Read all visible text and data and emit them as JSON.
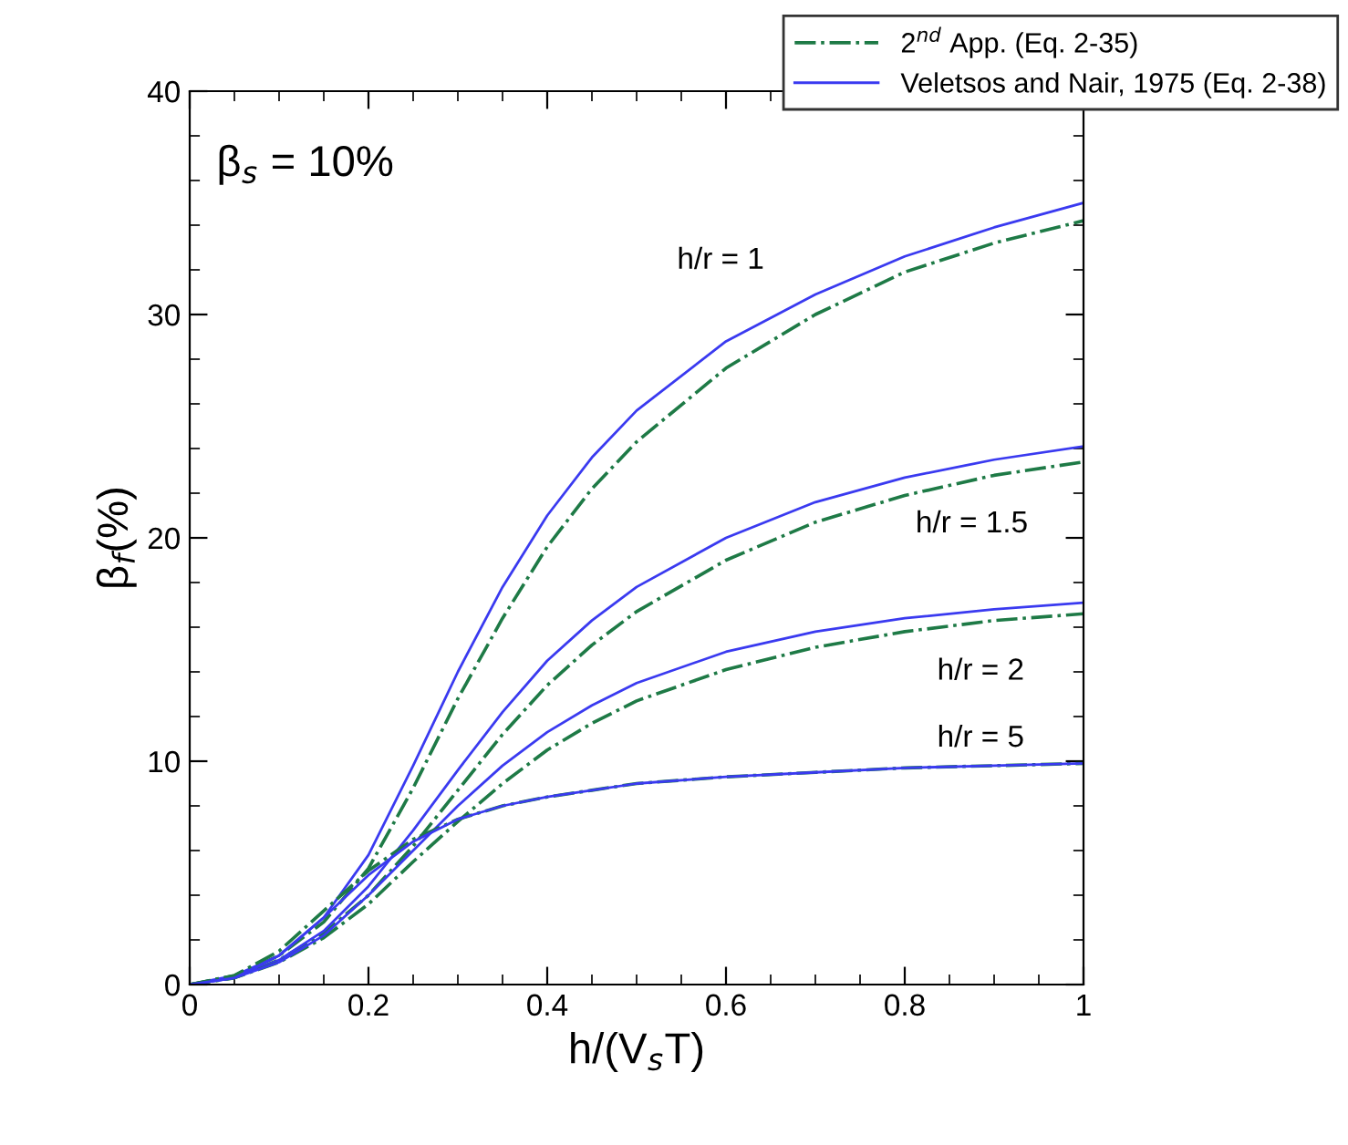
{
  "chart_data": {
    "type": "line",
    "xlabel": "h/(V$_{s}$T)",
    "ylabel": "β$_{f}$(%)",
    "x": [
      0,
      0.05,
      0.1,
      0.15,
      0.2,
      0.25,
      0.3,
      0.35,
      0.4,
      0.45,
      0.5,
      0.6,
      0.7,
      0.8,
      0.9,
      1
    ],
    "series": [
      {
        "name": "2$^{nd}$ App. (Eq. 2-35)",
        "color": "#1e7a46",
        "line_style": "dashdot",
        "values": [
          0,
          0.4,
          1.3,
          2.8,
          5.2,
          8.8,
          12.8,
          16.4,
          19.6,
          22.2,
          24.3,
          27.6,
          30.0,
          31.9,
          33.2,
          34.2
        ]
      },
      {
        "name": "Veletsos and Nair, 1975 (Eq. 2-38)",
        "color": "#3a3af0",
        "line_style": "solid",
        "values": [
          0,
          0.4,
          1.3,
          3.0,
          5.8,
          9.8,
          14.0,
          17.8,
          21.0,
          23.6,
          25.7,
          28.8,
          30.9,
          32.6,
          33.9,
          35.0
        ]
      },
      {
        "color": "#1e7a46",
        "line_style": "dashdot",
        "values": [
          0,
          0.3,
          1.1,
          2.3,
          4.0,
          6.2,
          8.7,
          11.2,
          13.4,
          15.2,
          16.7,
          19.0,
          20.7,
          21.9,
          22.8,
          23.4
        ]
      },
      {
        "color": "#3a3af0",
        "line_style": "solid",
        "values": [
          0,
          0.3,
          1.1,
          2.4,
          4.4,
          6.9,
          9.6,
          12.2,
          14.5,
          16.3,
          17.8,
          20.0,
          21.6,
          22.7,
          23.5,
          24.1
        ]
      },
      {
        "color": "#1e7a46",
        "line_style": "dashdot",
        "values": [
          0,
          0.3,
          1.0,
          2.1,
          3.6,
          5.5,
          7.3,
          9.0,
          10.5,
          11.7,
          12.7,
          14.1,
          15.1,
          15.8,
          16.3,
          16.6
        ]
      },
      {
        "color": "#3a3af0",
        "line_style": "solid",
        "values": [
          0,
          0.3,
          1.0,
          2.2,
          4.0,
          6.0,
          8.0,
          9.8,
          11.3,
          12.5,
          13.5,
          14.9,
          15.8,
          16.4,
          16.8,
          17.1
        ]
      },
      {
        "color": "#1e7a46",
        "line_style": "dashdot",
        "values": [
          0,
          0.4,
          1.5,
          3.3,
          5.1,
          6.5,
          7.4,
          8.0,
          8.4,
          8.7,
          9.0,
          9.3,
          9.5,
          9.7,
          9.8,
          9.9
        ]
      },
      {
        "color": "#3a3af0",
        "line_style": "solid",
        "values": [
          0,
          0.3,
          1.3,
          3.0,
          4.9,
          6.4,
          7.4,
          8.0,
          8.4,
          8.7,
          9.0,
          9.3,
          9.5,
          9.7,
          9.8,
          9.9
        ]
      }
    ],
    "xlim": [
      0,
      1
    ],
    "ylim": [
      0,
      40
    ],
    "xticks": [
      0,
      0.2,
      0.4,
      0.6,
      0.8,
      1
    ],
    "yticks": [
      0,
      10,
      20,
      30,
      40
    ],
    "annotations": [
      "β$_{s}$ = 10%",
      "h/r = 1",
      "h/r = 1.5",
      "h/r = 2",
      "h/r = 5"
    ],
    "legend": "top right",
    "grid": false
  }
}
